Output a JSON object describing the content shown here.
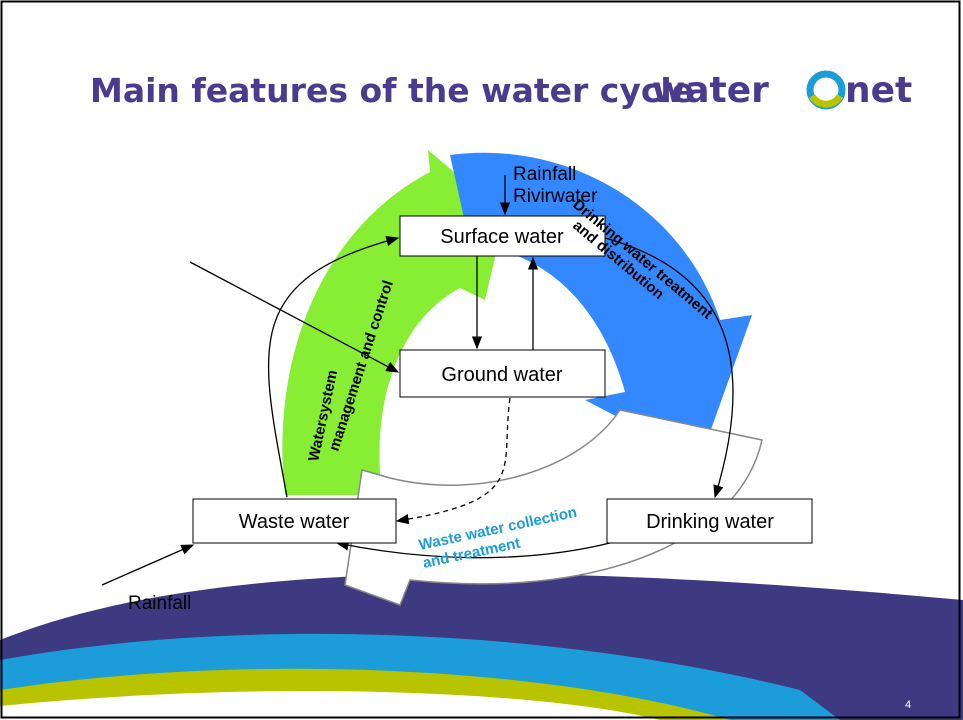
{
  "header": {
    "title": "Main features of the water cycle",
    "logo": [
      "water",
      "net"
    ]
  },
  "nodes": [
    {
      "label": "Surface water"
    },
    {
      "label": "Ground water"
    },
    {
      "label": "Waste water"
    },
    {
      "label": "Drinking water"
    }
  ],
  "inputs": {
    "top": [
      "Rainfall",
      "Rivirwater"
    ],
    "bottom": "Rainfall"
  },
  "cycles": [
    {
      "lines": [
        "Watersystem",
        "management and control"
      ]
    },
    {
      "lines": [
        "Drinking water treatment",
        "and distribution"
      ]
    },
    {
      "lines": [
        "Waste water collection",
        "and treatment"
      ]
    }
  ],
  "page_number": "4"
}
